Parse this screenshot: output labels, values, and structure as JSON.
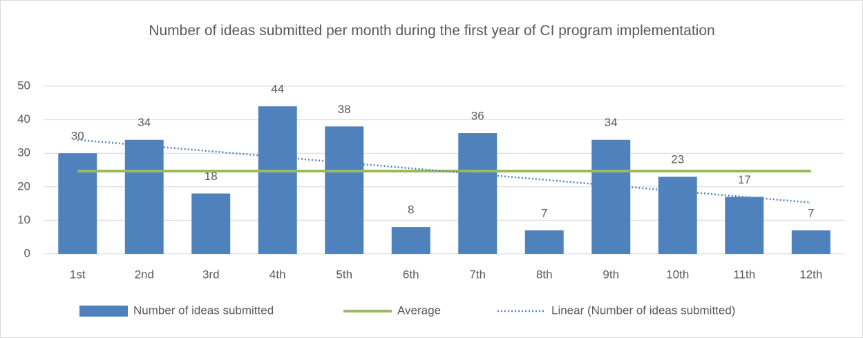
{
  "chart_data": {
    "type": "bar",
    "title": "Number of  ideas submitted per month during the first year of CI program implementation",
    "categories": [
      "1st",
      "2nd",
      "3rd",
      "4th",
      "5th",
      "6th",
      "7th",
      "8th",
      "9th",
      "10th",
      "11th",
      "12th"
    ],
    "series": [
      {
        "name": "Number of ideas submitted",
        "type": "bar",
        "color": "#4f81bd",
        "data_labels": true,
        "values": [
          30,
          34,
          18,
          44,
          38,
          8,
          36,
          7,
          34,
          23,
          17,
          7
        ]
      },
      {
        "name": "Average",
        "type": "line",
        "color": "#9bbb59",
        "dash": "solid",
        "values": [
          24.7,
          24.7,
          24.7,
          24.7,
          24.7,
          24.7,
          24.7,
          24.7,
          24.7,
          24.7,
          24.7,
          24.7
        ]
      },
      {
        "name": "Linear (Number of ideas submitted)",
        "type": "line",
        "color": "#4f81bd",
        "dash": "dotted",
        "values": [
          34.0,
          32.3,
          30.6,
          28.9,
          27.2,
          25.5,
          23.8,
          22.1,
          20.4,
          18.7,
          17.0,
          15.3
        ]
      }
    ],
    "ylim": [
      0,
      50
    ],
    "yticks": [
      0,
      10,
      20,
      30,
      40,
      50
    ],
    "grid": true,
    "legend": "bottom"
  }
}
